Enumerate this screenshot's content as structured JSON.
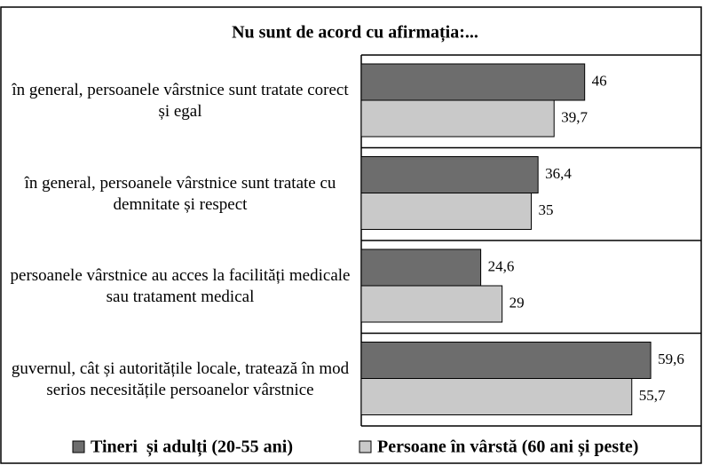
{
  "chart_data": {
    "type": "barh",
    "title": "Nu sunt de acord cu afirmația:...",
    "categories": [
      "în general, persoanele vârstnice sunt tratate corect și egal",
      "în general, persoanele vârstnice sunt tratate cu demnitate și respect",
      "persoanele vârstnice au acces la facilități medicale sau tratament medical",
      "guvernul, cât și autoritățile locale, tratează în mod serios necesitățile persoanelor vârstnice"
    ],
    "series": [
      {
        "name": "Tineri  și adulți (20-55 ani)",
        "color": "#6d6d6d",
        "values": [
          46,
          36.4,
          24.6,
          59.6
        ],
        "value_labels": [
          "46",
          "36,4",
          "24,6",
          "59,6"
        ]
      },
      {
        "name": "Persoane în vârstă (60 ani și peste)",
        "color": "#c9c9c9",
        "values": [
          39.7,
          35,
          29,
          55.7
        ],
        "value_labels": [
          "39,7",
          "35",
          "29",
          "55,7"
        ]
      }
    ],
    "xlim": [
      0,
      70
    ],
    "legend": "bottom"
  }
}
